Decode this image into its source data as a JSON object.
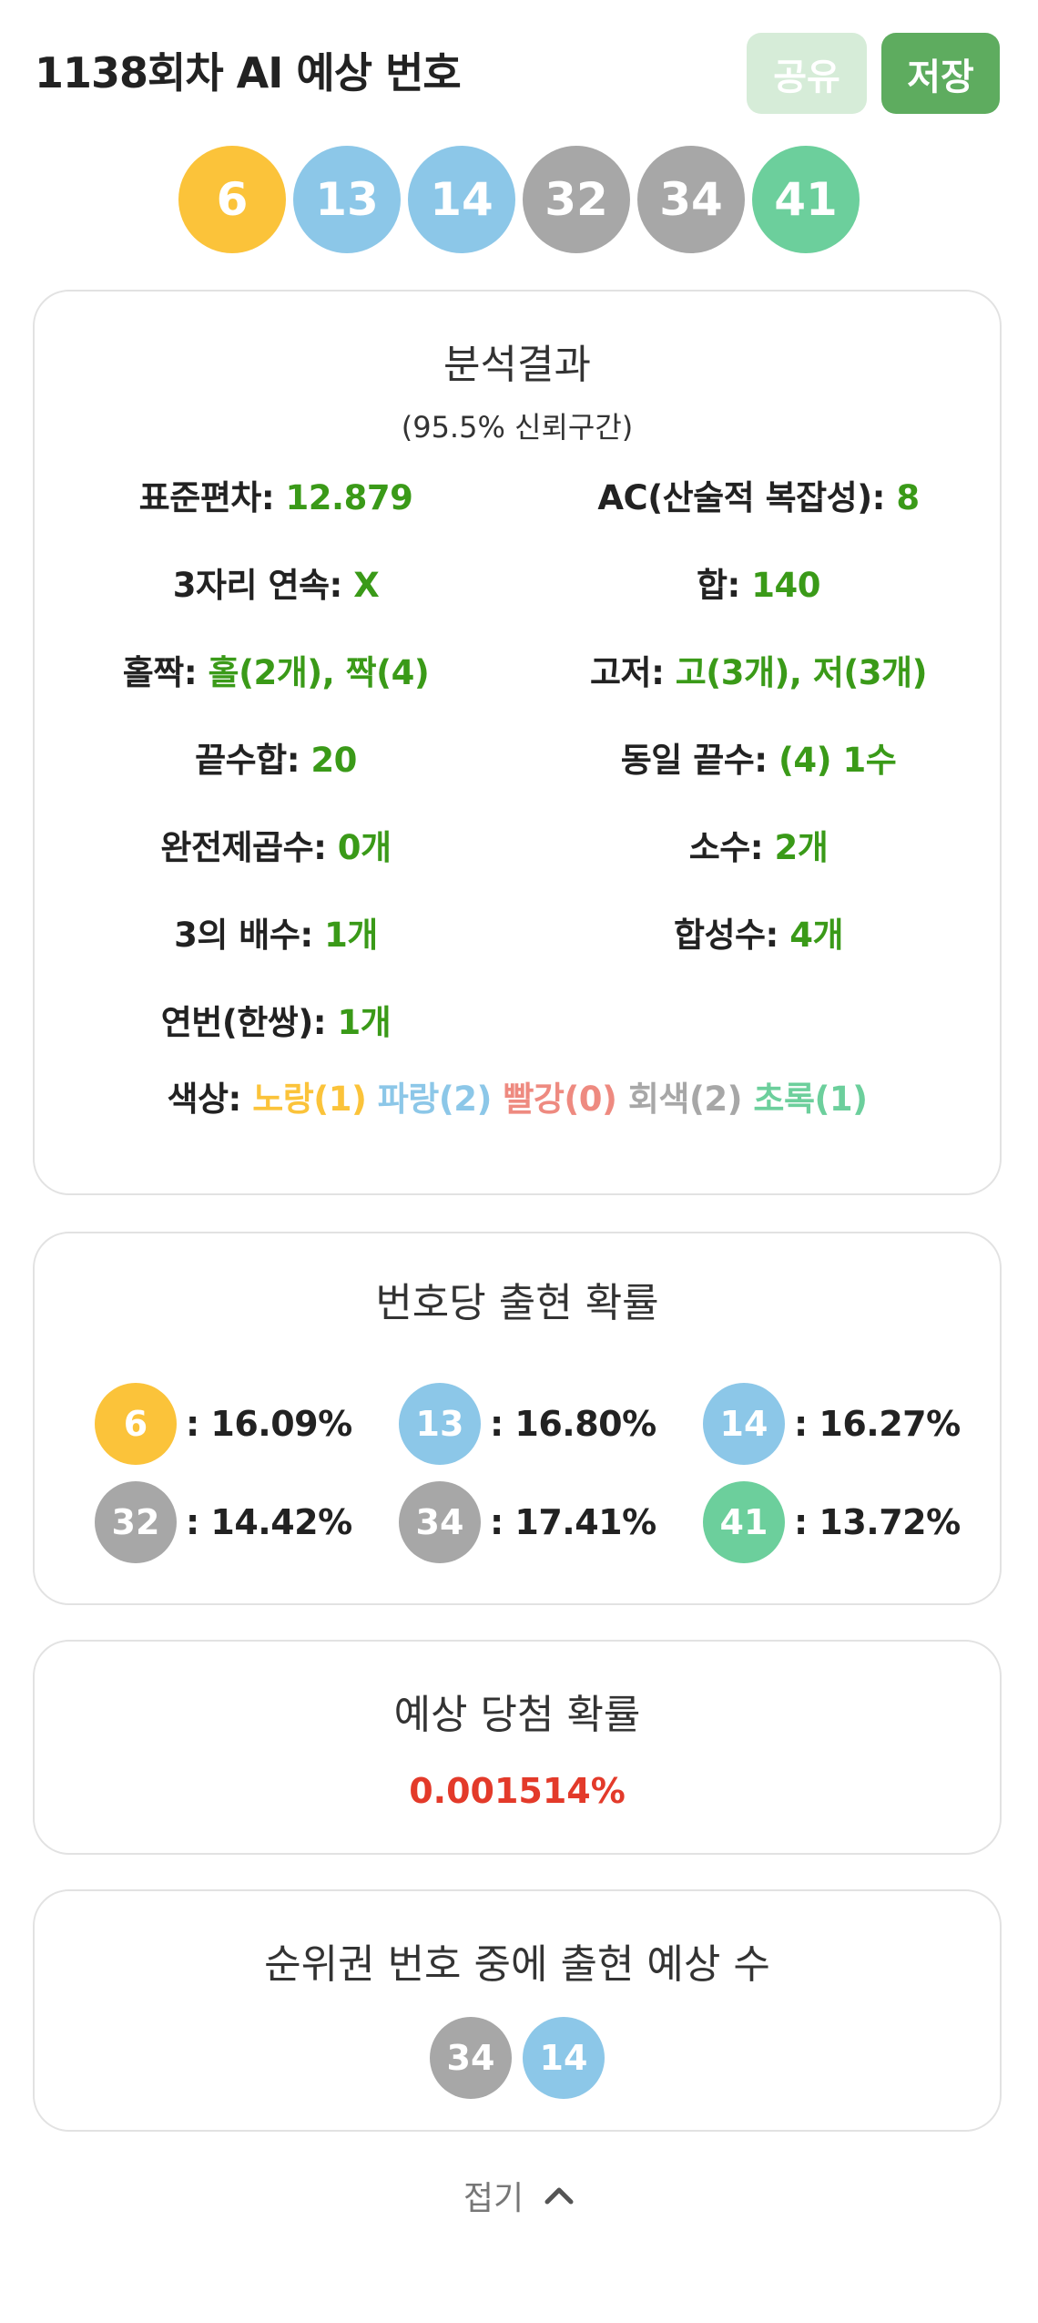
{
  "header": {
    "title": "1138회차 AI 예상 번호",
    "share_label": "공유",
    "save_label": "저장"
  },
  "main_balls": [
    {
      "number": "6",
      "color": "yellow"
    },
    {
      "number": "13",
      "color": "blue"
    },
    {
      "number": "14",
      "color": "blue"
    },
    {
      "number": "32",
      "color": "gray"
    },
    {
      "number": "34",
      "color": "gray"
    },
    {
      "number": "41",
      "color": "green"
    }
  ],
  "analysis": {
    "title": "분석결과",
    "subtitle": "(95.5% 신뢰구간)",
    "stats": [
      {
        "label": "표준편차:",
        "value": "12.879"
      },
      {
        "label": "AC(산술적 복잡성):",
        "value": "8"
      },
      {
        "label": "3자리 연속:",
        "value": "X"
      },
      {
        "label": "합:",
        "value": "140"
      },
      {
        "label": "홀짝:",
        "value": "홀(2개), 짝(4)"
      },
      {
        "label": "고저:",
        "value": "고(3개), 저(3개)"
      },
      {
        "label": "끝수합:",
        "value": "20"
      },
      {
        "label": "동일 끝수:",
        "value": "(4) 1수"
      },
      {
        "label": "완전제곱수:",
        "value": "0개"
      },
      {
        "label": "소수:",
        "value": "2개"
      },
      {
        "label": "3의 배수:",
        "value": "1개"
      },
      {
        "label": "합성수:",
        "value": "4개"
      },
      {
        "label": "연번(한쌍):",
        "value": "1개"
      }
    ],
    "colors": {
      "label": "색상:",
      "yellow": "노랑(1)",
      "blue": "파랑(2)",
      "red": "빨강(0)",
      "gray": "회색(2)",
      "green": "초록(1)"
    }
  },
  "probability": {
    "title": "번호당 출현 확률",
    "items": [
      {
        "number": "6",
        "color": "yellow",
        "text": ": 16.09%"
      },
      {
        "number": "13",
        "color": "blue",
        "text": ": 16.80%"
      },
      {
        "number": "14",
        "color": "blue",
        "text": ": 16.27%"
      },
      {
        "number": "32",
        "color": "gray",
        "text": ": 14.42%"
      },
      {
        "number": "34",
        "color": "gray",
        "text": ": 17.41%"
      },
      {
        "number": "41",
        "color": "green",
        "text": ": 13.72%"
      }
    ]
  },
  "win": {
    "title": "예상 당첨 확률",
    "value": "0.001514%"
  },
  "ranked": {
    "title": "순위권 번호 중에 출현 예상 수",
    "balls": [
      {
        "number": "34",
        "color": "gray"
      },
      {
        "number": "14",
        "color": "blue"
      }
    ]
  },
  "fold": {
    "label": "접기",
    "icon": "chevron-up-icon"
  },
  "palette": {
    "yellow": "#fbc33a",
    "blue": "#8cc7e8",
    "gray": "#a7a7a7",
    "green": "#6ccf9c",
    "value_green": "#3a9a18",
    "win_red": "#e33a2a"
  }
}
